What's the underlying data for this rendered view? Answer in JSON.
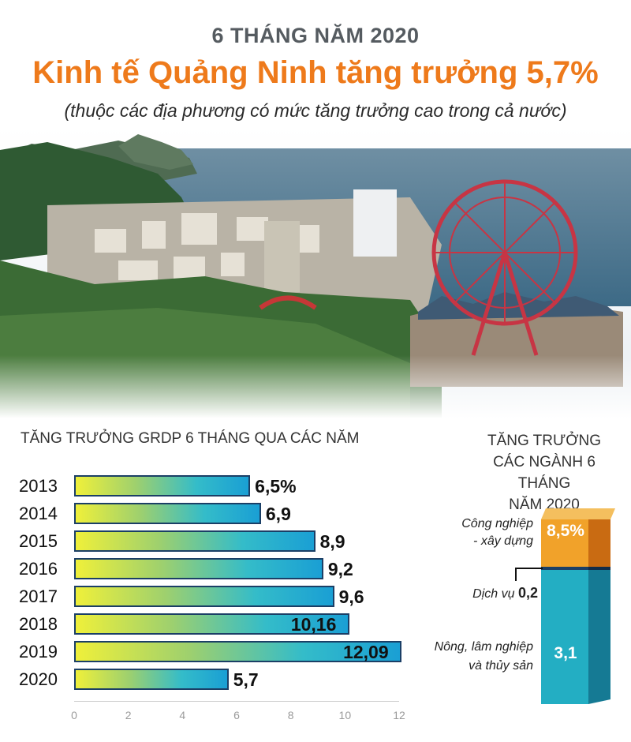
{
  "header": {
    "kicker": "6 THÁNG NĂM 2020",
    "title": "Kinh tế Quảng Ninh tăng trưởng 5,7%",
    "subtitle": "(thuộc các địa phương có mức tăng trưởng cao trong cả nước)"
  },
  "colors": {
    "accent": "#ee7a1b",
    "bar_border": "#1b3f66",
    "orange": "#f1a22a",
    "teal": "#23aec3"
  },
  "chart_data": [
    {
      "type": "bar",
      "title": "TĂNG TRƯỞNG  GRDP 6 THÁNG QUA CÁC NĂM",
      "orientation": "horizontal",
      "categories": [
        "2013",
        "2014",
        "2015",
        "2016",
        "2017",
        "2018",
        "2019",
        "2020"
      ],
      "values": [
        6.5,
        6.9,
        8.9,
        9.2,
        9.6,
        10.16,
        12.09,
        5.7
      ],
      "value_labels": [
        "6,5%",
        "6,9",
        "8,9",
        "9,2",
        "9,6",
        "10,16",
        "12,09",
        "5,7"
      ],
      "xlim": [
        0,
        12
      ],
      "xticks": [
        "0",
        "2",
        "4",
        "6",
        "8",
        "10",
        "12"
      ],
      "grid": false
    },
    {
      "type": "bar",
      "title": "TĂNG TRƯỞNG CÁC NGÀNH 6 THÁNG NĂM 2020",
      "title_lines": [
        "TĂNG TRƯỞNG",
        "CÁC NGÀNH 6 THÁNG",
        "NĂM 2020"
      ],
      "stacked": true,
      "segments": [
        {
          "label_lines": [
            "Công nghiệp",
            "- xây dựng"
          ],
          "value": 8.5,
          "value_label": "8,5%",
          "color": "#f1a22a"
        },
        {
          "label": "Dịch vụ",
          "value": 0.2,
          "value_label": "0,2",
          "color": "#1b3f66"
        },
        {
          "label_lines": [
            "Nông, lâm nghiệp",
            "và thủy sản"
          ],
          "value": 3.1,
          "value_label": "3,1",
          "color": "#23aec3"
        }
      ]
    }
  ]
}
